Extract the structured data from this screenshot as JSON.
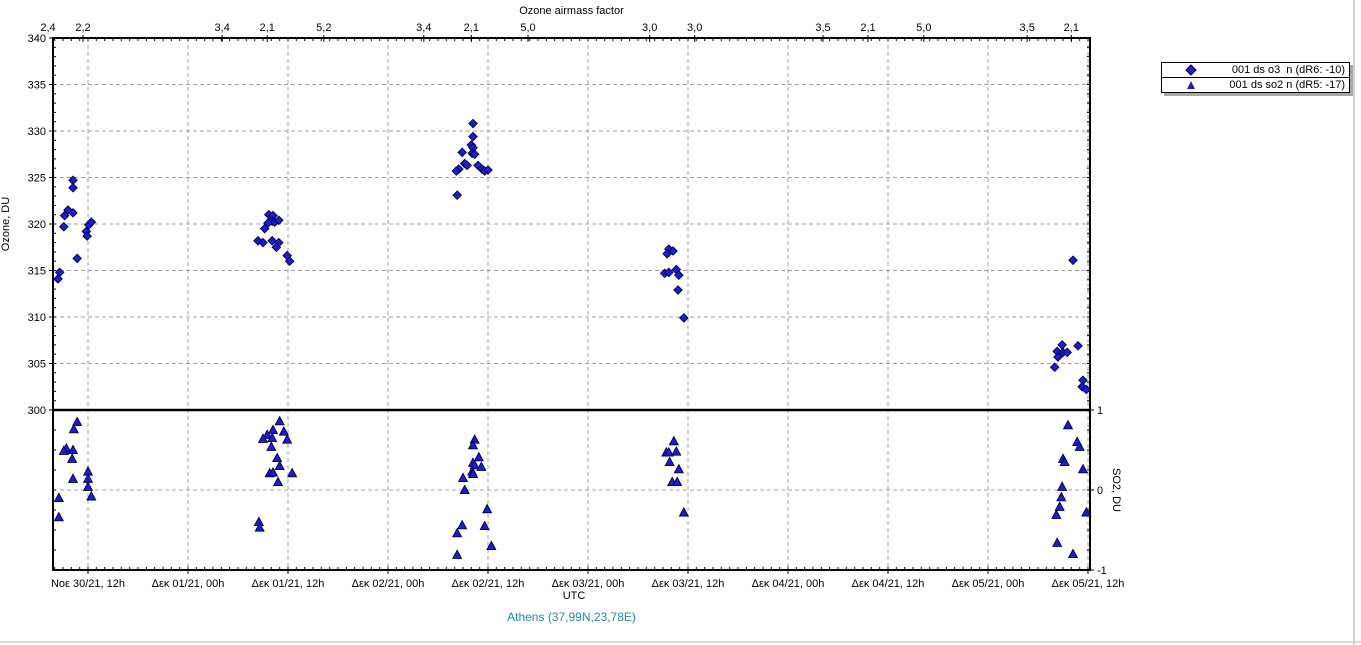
{
  "header": {
    "top_axis_title": "Ozone airmass factor"
  },
  "axes": {
    "left_label": "Ozone, DU",
    "right_label": "SO2, DU",
    "bottom_label": "UTC"
  },
  "footer": {
    "station": "Athens (37,99N,23,78E)",
    "station_color": "#1f8ba6"
  },
  "legend": {
    "entries": [
      {
        "label": "001 ds o3  n (dR6: -10)",
        "marker": "diamond"
      },
      {
        "label": "001 ds so2 n (dR5: -17)",
        "marker": "triangle"
      }
    ]
  },
  "colors": {
    "marker_fill": "#1c1cd2",
    "marker_stroke": "#00004a",
    "grid": "#a0a0a0",
    "axis": "#000000"
  },
  "chart_data": {
    "type": "scatter",
    "title": "Ozone airmass factor",
    "xlabel": "UTC",
    "ylabel_left": "Ozone, DU",
    "ylabel_right": "SO2, DU",
    "station": "Athens (37,99N,23,78E)",
    "grid": true,
    "legend_position": "outside-top-right",
    "x_unit": "hours relative to first tick (Νοε 30/21 12:00 UTC)",
    "x_range": [
      -4.2,
      120.2
    ],
    "x_ticks": [
      {
        "h": 0,
        "label": "Νοε 30/21, 12h"
      },
      {
        "h": 12,
        "label": "Δεκ 01/21, 00h"
      },
      {
        "h": 24,
        "label": "Δεκ 01/21, 12h"
      },
      {
        "h": 36,
        "label": "Δεκ 02/21, 00h"
      },
      {
        "h": 48,
        "label": "Δεκ 02/21, 12h"
      },
      {
        "h": 60,
        "label": "Δεκ 03/21, 00h"
      },
      {
        "h": 72,
        "label": "Δεκ 03/21, 12h"
      },
      {
        "h": 84,
        "label": "Δεκ 04/21, 00h"
      },
      {
        "h": 96,
        "label": "Δεκ 04/21, 12h"
      },
      {
        "h": 108,
        "label": "Δεκ 05/21, 00h"
      },
      {
        "h": 120,
        "label": "Δεκ 05/21, 12h"
      }
    ],
    "ozone_axis": {
      "min": 300,
      "max": 340,
      "major_step": 5,
      "minor_step": 1,
      "tick_labels": [
        340,
        335,
        330,
        325,
        320,
        315,
        310,
        305,
        300
      ],
      "baseline": 300
    },
    "so2_axis": {
      "min": -1,
      "max": 1,
      "minor_step": 0.25,
      "tick_labels": [
        1,
        0,
        -1
      ]
    },
    "airmass_factors": [
      {
        "h": -4.8,
        "value": "2,4"
      },
      {
        "h": -0.6,
        "value": "2,2"
      },
      {
        "h": 16.1,
        "value": "3,4"
      },
      {
        "h": 21.5,
        "value": "2,1"
      },
      {
        "h": 28.3,
        "value": "5,2"
      },
      {
        "h": 40.3,
        "value": "3,4"
      },
      {
        "h": 46.0,
        "value": "2,1"
      },
      {
        "h": 52.8,
        "value": "5,0"
      },
      {
        "h": 67.4,
        "value": "3,0"
      },
      {
        "h": 72.8,
        "value": "3,0"
      },
      {
        "h": 88.2,
        "value": "3,5"
      },
      {
        "h": 93.6,
        "value": "2,1"
      },
      {
        "h": 100.3,
        "value": "5,0"
      },
      {
        "h": 112.7,
        "value": "3,5"
      },
      {
        "h": 118.0,
        "value": "2,1"
      }
    ],
    "series": [
      {
        "name": "001 ds o3  n (dR6: -10)",
        "marker": "diamond",
        "axis": "ozone",
        "points": [
          [
            -1.8,
            324.7
          ],
          [
            -1.8,
            323.9
          ],
          [
            -2.4,
            321.5
          ],
          [
            -1.8,
            321.2
          ],
          [
            -2.8,
            320.9
          ],
          [
            -2.9,
            319.7
          ],
          [
            0.1,
            319.9
          ],
          [
            0.4,
            320.2
          ],
          [
            -0.2,
            319.2
          ],
          [
            -0.1,
            318.7
          ],
          [
            -1.3,
            316.3
          ],
          [
            -3.4,
            314.8
          ],
          [
            -3.6,
            314.1
          ],
          [
            21.7,
            321.0
          ],
          [
            22.2,
            320.9
          ],
          [
            22.1,
            320.3
          ],
          [
            22.4,
            320.2
          ],
          [
            22.9,
            320.4
          ],
          [
            21.6,
            320.1
          ],
          [
            21.2,
            319.5
          ],
          [
            20.4,
            318.2
          ],
          [
            21.0,
            318.0
          ],
          [
            22.1,
            318.2
          ],
          [
            22.9,
            318.0
          ],
          [
            22.6,
            317.5
          ],
          [
            23.9,
            316.6
          ],
          [
            24.2,
            316.0
          ],
          [
            46.2,
            330.8
          ],
          [
            46.2,
            329.4
          ],
          [
            46.0,
            328.5
          ],
          [
            46.2,
            328.2
          ],
          [
            44.9,
            327.7
          ],
          [
            46.1,
            327.6
          ],
          [
            46.4,
            327.5
          ],
          [
            45.2,
            326.5
          ],
          [
            45.5,
            326.3
          ],
          [
            44.5,
            325.9
          ],
          [
            44.2,
            325.7
          ],
          [
            46.8,
            326.3
          ],
          [
            47.3,
            325.9
          ],
          [
            47.6,
            325.7
          ],
          [
            48.0,
            325.8
          ],
          [
            44.3,
            323.1
          ],
          [
            69.7,
            317.3
          ],
          [
            70.2,
            317.1
          ],
          [
            69.5,
            316.8
          ],
          [
            69.2,
            314.7
          ],
          [
            69.7,
            314.8
          ],
          [
            70.6,
            315.1
          ],
          [
            70.9,
            314.5
          ],
          [
            70.8,
            312.9
          ],
          [
            71.5,
            309.9
          ],
          [
            118.2,
            316.1
          ],
          [
            116.9,
            307.0
          ],
          [
            116.3,
            306.3
          ],
          [
            117.0,
            306.2
          ],
          [
            117.5,
            306.2
          ],
          [
            118.8,
            306.9
          ],
          [
            116.4,
            305.7
          ],
          [
            116.0,
            304.6
          ],
          [
            119.4,
            303.2
          ],
          [
            119.3,
            302.5
          ],
          [
            119.8,
            302.2
          ]
        ]
      },
      {
        "name": "001 ds so2 n (dR5: -17)",
        "marker": "triangle",
        "axis": "so2",
        "points": [
          [
            -1.3,
            0.85
          ],
          [
            -1.7,
            0.76
          ],
          [
            -2.6,
            0.52
          ],
          [
            -2.9,
            0.49
          ],
          [
            -1.8,
            0.5
          ],
          [
            -1.9,
            0.39
          ],
          [
            0.0,
            0.23
          ],
          [
            -1.8,
            0.14
          ],
          [
            0.0,
            0.14
          ],
          [
            0.0,
            0.04
          ],
          [
            0.4,
            -0.08
          ],
          [
            -3.5,
            -0.1
          ],
          [
            -3.5,
            -0.34
          ],
          [
            23.0,
            0.86
          ],
          [
            22.2,
            0.75
          ],
          [
            21.5,
            0.69
          ],
          [
            21.0,
            0.64
          ],
          [
            22.1,
            0.65
          ],
          [
            23.5,
            0.73
          ],
          [
            23.9,
            0.63
          ],
          [
            22.0,
            0.54
          ],
          [
            22.7,
            0.4
          ],
          [
            23.0,
            0.3
          ],
          [
            21.8,
            0.21
          ],
          [
            22.2,
            0.22
          ],
          [
            24.5,
            0.21
          ],
          [
            22.8,
            0.1
          ],
          [
            20.5,
            -0.4
          ],
          [
            20.6,
            -0.47
          ],
          [
            46.4,
            0.63
          ],
          [
            46.2,
            0.56
          ],
          [
            46.9,
            0.41
          ],
          [
            46.2,
            0.34
          ],
          [
            46.4,
            0.31
          ],
          [
            47.2,
            0.29
          ],
          [
            46.1,
            0.23
          ],
          [
            46.2,
            0.2
          ],
          [
            45.0,
            0.15
          ],
          [
            45.2,
            0.0
          ],
          [
            47.9,
            -0.24
          ],
          [
            47.6,
            -0.45
          ],
          [
            44.9,
            -0.44
          ],
          [
            44.3,
            -0.54
          ],
          [
            48.4,
            -0.7
          ],
          [
            44.3,
            -0.81
          ],
          [
            70.3,
            0.61
          ],
          [
            69.4,
            0.47
          ],
          [
            69.7,
            0.47
          ],
          [
            70.6,
            0.48
          ],
          [
            69.8,
            0.35
          ],
          [
            70.9,
            0.26
          ],
          [
            70.1,
            0.1
          ],
          [
            70.7,
            0.1
          ],
          [
            71.5,
            -0.28
          ],
          [
            117.6,
            0.81
          ],
          [
            118.7,
            0.6
          ],
          [
            119.0,
            0.54
          ],
          [
            117.0,
            0.39
          ],
          [
            117.2,
            0.35
          ],
          [
            119.4,
            0.26
          ],
          [
            116.9,
            0.04
          ],
          [
            116.8,
            -0.09
          ],
          [
            116.6,
            -0.21
          ],
          [
            116.2,
            -0.31
          ],
          [
            119.8,
            -0.28
          ],
          [
            116.3,
            -0.66
          ],
          [
            118.2,
            -0.8
          ]
        ]
      }
    ]
  }
}
